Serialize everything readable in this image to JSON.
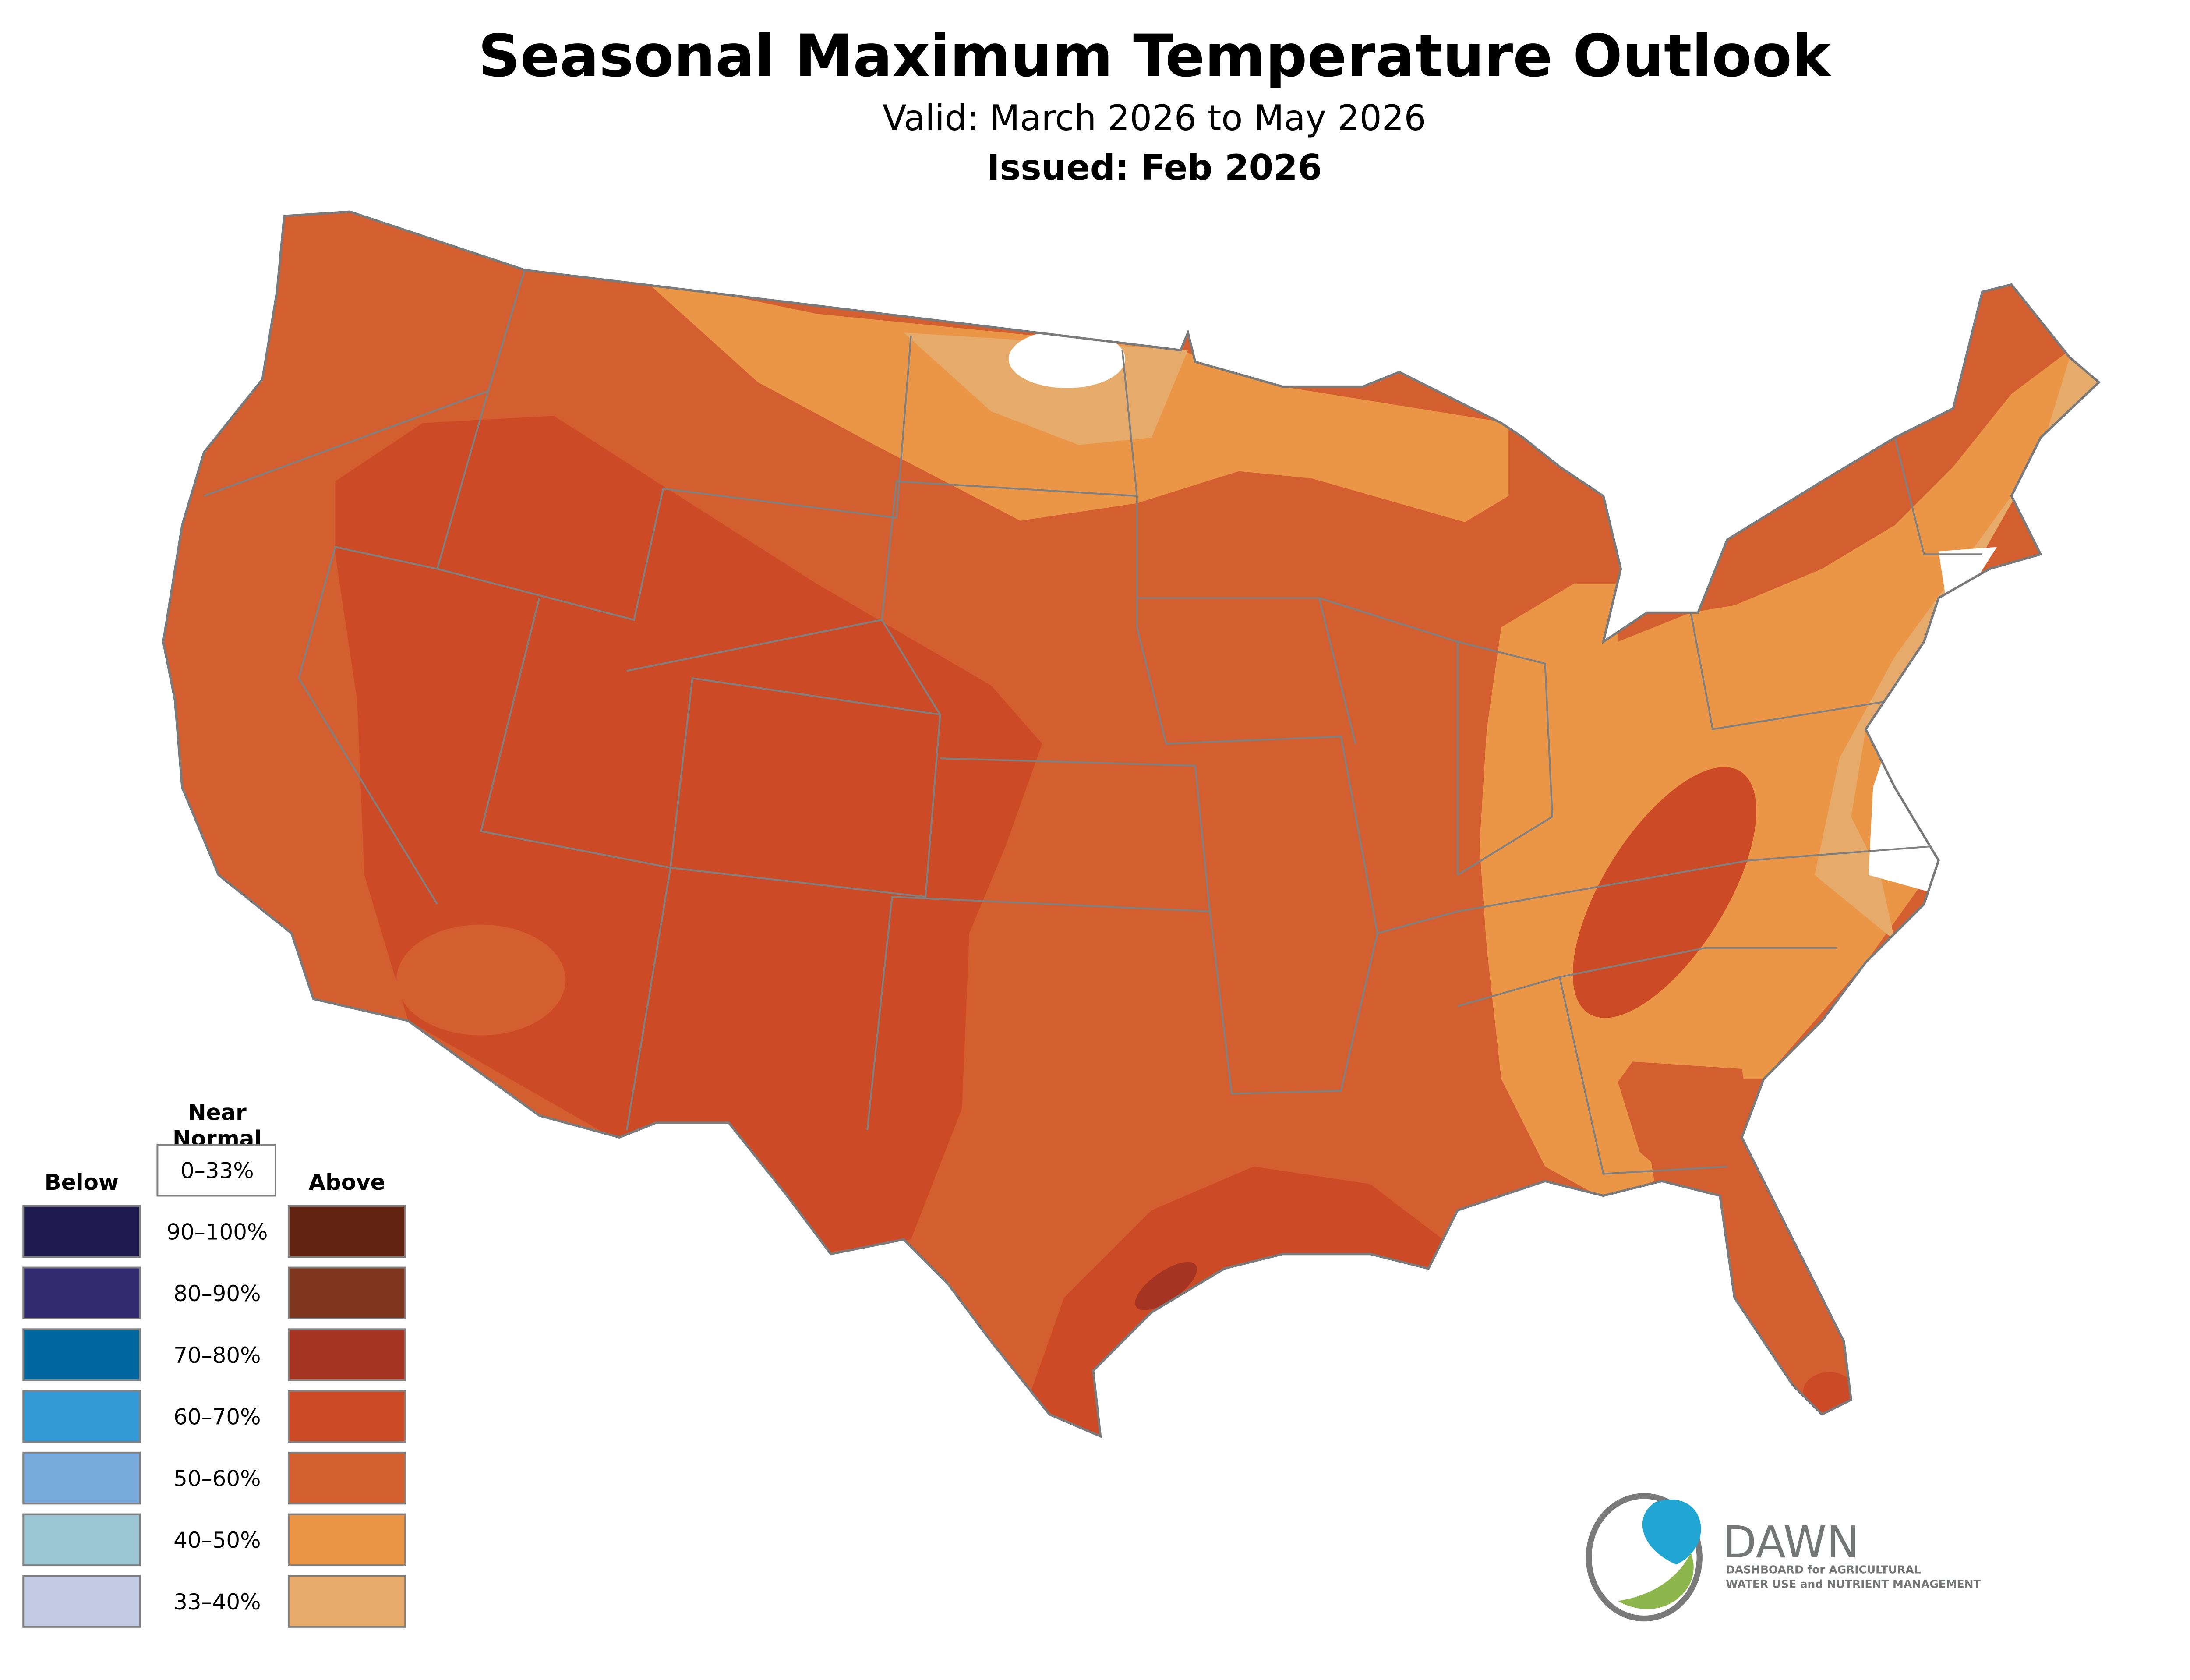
{
  "title": "Seasonal Maximum Temperature Outlook",
  "subtitle": "Valid: March 2026 to May 2026",
  "issued": "Issued: Feb 2026",
  "legend": {
    "near_normal_line1": "Near",
    "near_normal_line2": "Normal",
    "near_normal_range": "0–33%",
    "below_label": "Below",
    "above_label": "Above",
    "rows": [
      {
        "range": "90–100%",
        "below_color": "#1F1A4F",
        "above_color": "#622311"
      },
      {
        "range": "80–90%",
        "below_color": "#332C73",
        "above_color": "#7E351D"
      },
      {
        "range": "70–80%",
        "below_color": "#00679E",
        "above_color": "#A63423"
      },
      {
        "range": "60–70%",
        "below_color": "#3399D6",
        "above_color": "#CC4A26"
      },
      {
        "range": "50–60%",
        "below_color": "#77A9DC",
        "above_color": "#D35F31"
      },
      {
        "range": "40–50%",
        "below_color": "#9BC5D2",
        "above_color": "#EB9647"
      },
      {
        "range": "33–40%",
        "below_color": "#C3CAE4",
        "above_color": "#E6AA6A"
      }
    ]
  },
  "logo": {
    "name": "DAWN",
    "tagline_line1": "DASHBOARD for AGRICULTURAL",
    "tagline_line2": "WATER USE and NUTRIENT MANAGEMENT"
  }
}
